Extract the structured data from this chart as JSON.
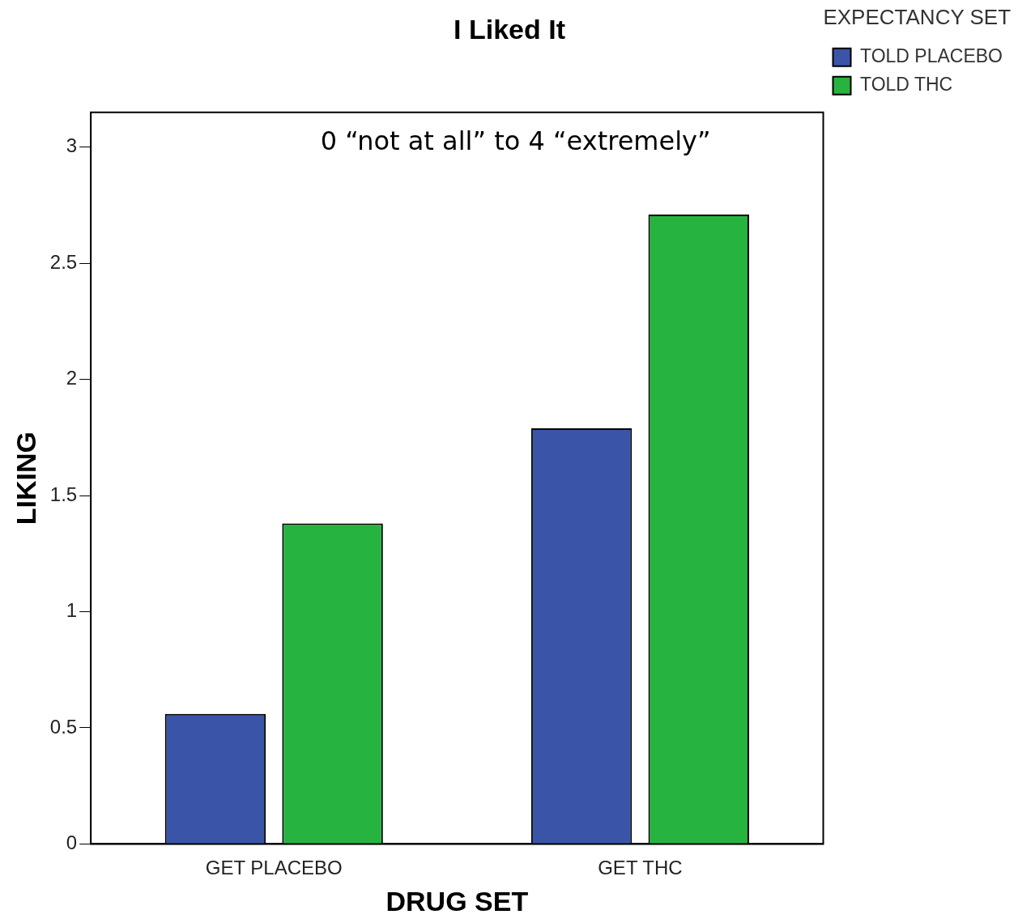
{
  "chart_data": {
    "type": "bar",
    "title": "I Liked It",
    "xlabel": "DRUG SET",
    "ylabel": "LIKING",
    "legend_title": "EXPECTANCY SET",
    "annotations": [
      "0 “not at all” to 4 “extremely”"
    ],
    "categories": [
      "GET PLACEBO",
      "GET THC"
    ],
    "series": [
      {
        "name": "TOLD PLACEBO",
        "color": "#3a55a8",
        "values": [
          0.56,
          1.79
        ]
      },
      {
        "name": "TOLD THC",
        "color": "#27b33f",
        "values": [
          1.38,
          2.71
        ]
      }
    ],
    "ylim": [
      0,
      3.15
    ],
    "yticks": [
      0,
      0.5,
      1,
      1.5,
      2,
      2.5,
      3
    ],
    "grid": false,
    "legend": "top right"
  }
}
